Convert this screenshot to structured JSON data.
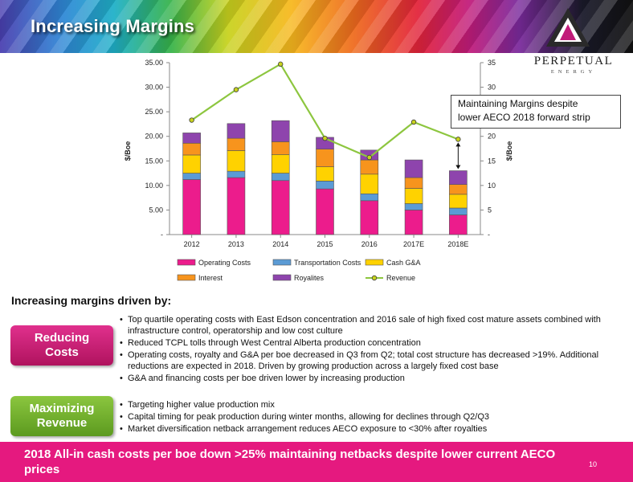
{
  "header": {
    "title": "Increasing Margins"
  },
  "logo": {
    "name": "PERPETUAL",
    "sub": "ENERGY"
  },
  "colors": {
    "pink": "#e5197f",
    "green": "#8bc63f"
  },
  "chart_data": {
    "type": "bar",
    "stacked": true,
    "categories": [
      "2012",
      "2013",
      "2014",
      "2015",
      "2016",
      "2017E",
      "2018E"
    ],
    "series": [
      {
        "name": "Operating Costs",
        "color": "#ec1c8c",
        "values": [
          11.2,
          11.6,
          11.0,
          9.3,
          6.9,
          5.0,
          4.0
        ]
      },
      {
        "name": "Transportation Costs",
        "color": "#5b9bd5",
        "values": [
          1.3,
          1.3,
          1.5,
          1.6,
          1.4,
          1.3,
          1.4
        ]
      },
      {
        "name": "Cash G&A",
        "color": "#ffd200",
        "values": [
          3.7,
          4.2,
          3.8,
          2.9,
          4.0,
          3.1,
          2.8
        ]
      },
      {
        "name": "Interest",
        "color": "#f7941d",
        "values": [
          2.4,
          2.5,
          2.6,
          3.6,
          2.9,
          2.2,
          2.0
        ]
      },
      {
        "name": "Royalites",
        "color": "#8e44ad",
        "values": [
          2.1,
          3.0,
          4.3,
          2.4,
          2.0,
          3.6,
          2.8
        ]
      },
      {
        "name": "Revenue",
        "type": "line",
        "color": "#8dc63f",
        "values": [
          23.3,
          29.5,
          34.7,
          19.6,
          15.7,
          22.9,
          19.4
        ]
      }
    ],
    "ylabel": "$/Boe",
    "y2label": "$/Boe",
    "ylim": [
      0,
      35
    ],
    "yticks": [
      "-",
      "5.00",
      "10.00",
      "15.00",
      "20.00",
      "25.00",
      "30.00",
      "35.00"
    ],
    "y2ticks": [
      "-",
      "5",
      "10",
      "15",
      "20",
      "25",
      "30",
      "35"
    ],
    "legend": "bottom"
  },
  "callout": {
    "line1": "Maintaining Margins despite",
    "line2": "lower AECO 2018 forward strip"
  },
  "drivers_heading": "Increasing margins driven by:",
  "sections": [
    {
      "pill_line1": "Reducing",
      "pill_line2": "Costs",
      "bullets": [
        "Top quartile operating costs with East Edson concentration and 2016 sale of high fixed cost mature assets combined with infrastructure control, operatorship and low cost culture",
        "Reduced TCPL tolls through West Central Alberta production concentration",
        "Operating costs, royalty and G&A per boe decreased in Q3 from Q2; total cost structure has decreased >19%. Additional reductions are expected in 2018. Driven by growing production across a largely fixed cost base",
        "G&A and financing costs per boe driven lower by increasing production"
      ]
    },
    {
      "pill_line1": "Maximizing",
      "pill_line2": "Revenue",
      "bullets": [
        "Targeting higher value production mix",
        "Capital timing for peak production during winter months, allowing for declines through Q2/Q3",
        "Market diversification netback arrangement reduces AECO exposure to <30% after royalties"
      ]
    }
  ],
  "footer": {
    "text": "2018 All-in cash costs per boe down >25% maintaining netbacks despite lower current AECO prices",
    "page": "10"
  }
}
